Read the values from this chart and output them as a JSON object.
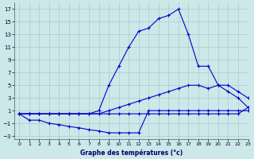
{
  "bg_color": "#cce8e8",
  "grid_color": "#aacccc",
  "line_color": "#0000cc",
  "xlim": [
    -0.5,
    23
  ],
  "ylim": [
    -3.5,
    18
  ],
  "xticks": [
    0,
    1,
    2,
    3,
    4,
    5,
    6,
    7,
    8,
    9,
    10,
    11,
    12,
    13,
    14,
    15,
    16,
    17,
    18,
    19,
    20,
    21,
    22,
    23
  ],
  "yticks": [
    -3,
    -1,
    1,
    3,
    5,
    7,
    9,
    11,
    13,
    15,
    17
  ],
  "xlabel": "Graphe des températures (°c)",
  "series": [
    {
      "x": [
        0,
        1,
        2,
        3,
        4,
        5,
        6,
        7,
        8,
        9,
        10,
        11,
        12,
        13,
        14,
        15,
        16,
        17,
        18,
        19,
        20,
        21,
        22,
        23
      ],
      "y": [
        0.5,
        0.5,
        0.5,
        0.5,
        0.5,
        0.5,
        0.5,
        0.5,
        0.5,
        0.5,
        0.5,
        0.5,
        0.5,
        0.5,
        0.5,
        0.5,
        0.5,
        0.5,
        0.5,
        0.5,
        0.5,
        0.5,
        0.5,
        1.5
      ]
    },
    {
      "x": [
        0,
        1,
        2,
        3,
        4,
        5,
        6,
        7,
        8,
        9,
        10,
        11,
        12,
        13,
        14,
        15,
        16,
        17,
        18,
        19,
        20,
        21,
        22,
        23
      ],
      "y": [
        0.5,
        0.5,
        0.5,
        0.5,
        0.5,
        0.5,
        0.5,
        0.5,
        0.5,
        1.0,
        1.5,
        2.0,
        2.5,
        3.0,
        3.5,
        4.0,
        4.5,
        5.0,
        5.0,
        4.5,
        5.0,
        5.0,
        4.0,
        3.0
      ]
    },
    {
      "x": [
        0,
        1,
        2,
        3,
        4,
        5,
        6,
        7,
        8,
        9,
        10,
        11,
        12,
        13,
        14,
        15,
        16,
        17,
        18,
        19,
        20,
        21,
        22,
        23
      ],
      "y": [
        0.5,
        0.5,
        0.5,
        0.5,
        0.5,
        0.5,
        0.5,
        0.5,
        1.0,
        5.0,
        8.0,
        11.0,
        13.5,
        14.0,
        15.5,
        16.0,
        17.0,
        13.0,
        8.0,
        8.0,
        5.0,
        4.0,
        3.0,
        1.5
      ]
    },
    {
      "x": [
        0,
        1,
        2,
        3,
        4,
        5,
        6,
        7,
        8,
        9,
        10,
        11,
        12,
        13,
        14,
        15,
        16,
        17,
        18,
        19,
        20,
        21,
        22,
        23
      ],
      "y": [
        0.5,
        -0.5,
        -0.5,
        -1.0,
        -1.2,
        -1.5,
        -1.7,
        -2.0,
        -2.2,
        -2.5,
        -2.5,
        -2.5,
        -2.5,
        1.0,
        1.0,
        1.0,
        1.0,
        1.0,
        1.0,
        1.0,
        1.0,
        1.0,
        1.0,
        1.0
      ]
    }
  ]
}
